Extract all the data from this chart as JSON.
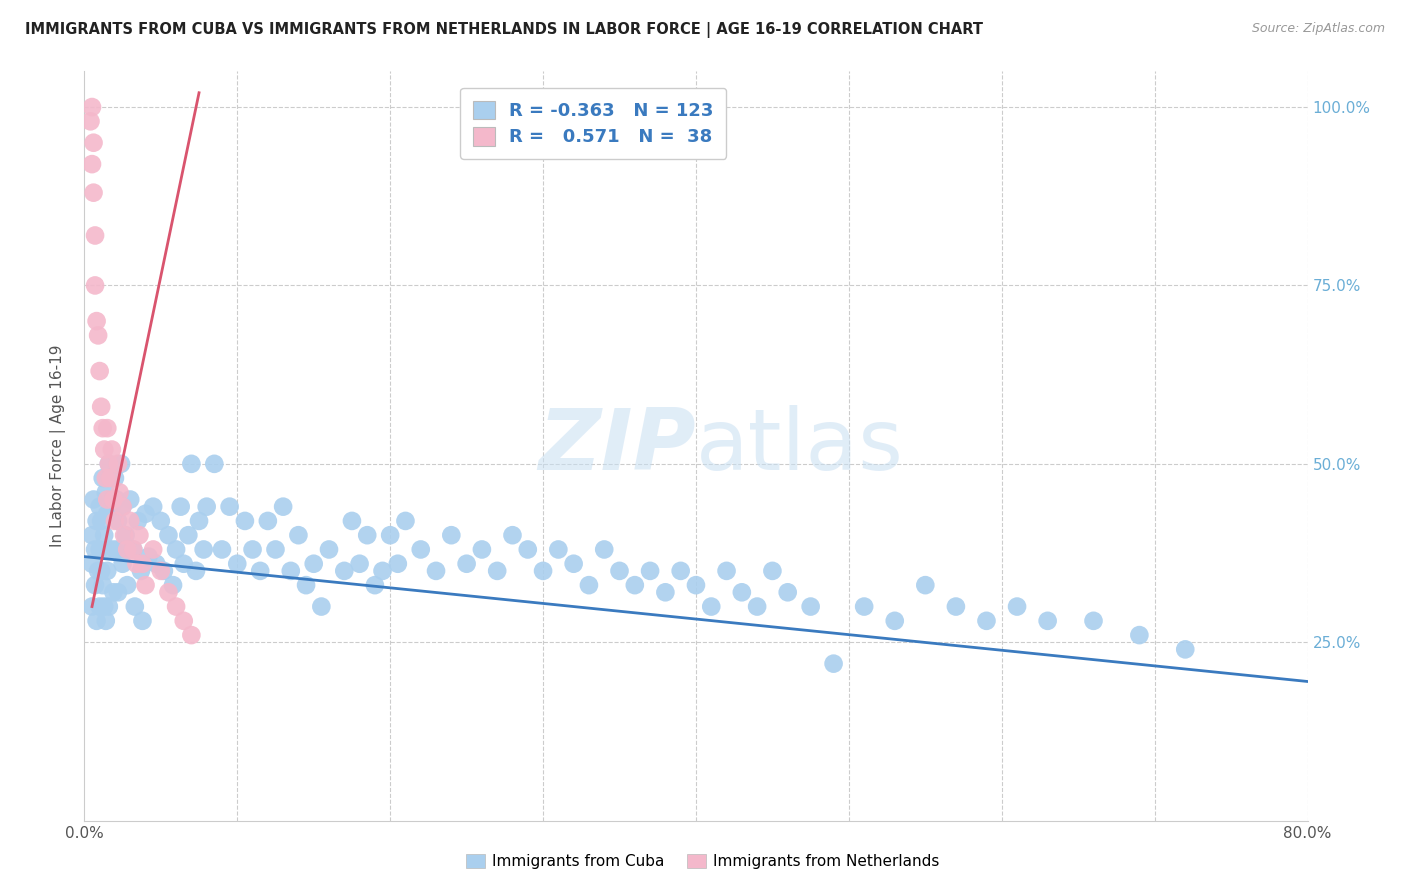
{
  "title": "IMMIGRANTS FROM CUBA VS IMMIGRANTS FROM NETHERLANDS IN LABOR FORCE | AGE 16-19 CORRELATION CHART",
  "source": "Source: ZipAtlas.com",
  "ylabel": "In Labor Force | Age 16-19",
  "legend_r_cuba": "-0.363",
  "legend_n_cuba": "123",
  "legend_r_neth": "0.571",
  "legend_n_neth": "38",
  "cuba_color": "#aacfee",
  "neth_color": "#f4b8cb",
  "cuba_line_color": "#3a7abf",
  "neth_line_color": "#d9546e",
  "legend_text_color": "#3a7abf",
  "watermark_color": "#c8dff2",
  "axis_label_color": "#555555",
  "right_tick_color": "#6baed6",
  "grid_color": "#cccccc",
  "background_color": "#ffffff",
  "xlim": [
    0.0,
    0.8
  ],
  "ylim": [
    0.0,
    1.05
  ],
  "cuba_trend_x": [
    0.0,
    0.8
  ],
  "cuba_trend_y": [
    0.37,
    0.195
  ],
  "neth_trend_x": [
    0.005,
    0.075
  ],
  "neth_trend_y": [
    0.3,
    1.02
  ],
  "cuba_x": [
    0.005,
    0.005,
    0.005,
    0.006,
    0.007,
    0.007,
    0.008,
    0.008,
    0.009,
    0.01,
    0.01,
    0.01,
    0.011,
    0.011,
    0.012,
    0.012,
    0.013,
    0.013,
    0.014,
    0.014,
    0.015,
    0.015,
    0.016,
    0.016,
    0.017,
    0.018,
    0.019,
    0.02,
    0.02,
    0.021,
    0.022,
    0.022,
    0.023,
    0.024,
    0.025,
    0.025,
    0.027,
    0.028,
    0.03,
    0.032,
    0.033,
    0.035,
    0.037,
    0.038,
    0.04,
    0.042,
    0.045,
    0.047,
    0.05,
    0.052,
    0.055,
    0.058,
    0.06,
    0.063,
    0.065,
    0.068,
    0.07,
    0.073,
    0.075,
    0.078,
    0.08,
    0.085,
    0.09,
    0.095,
    0.1,
    0.105,
    0.11,
    0.115,
    0.12,
    0.125,
    0.13,
    0.135,
    0.14,
    0.145,
    0.15,
    0.155,
    0.16,
    0.17,
    0.175,
    0.18,
    0.185,
    0.19,
    0.195,
    0.2,
    0.205,
    0.21,
    0.22,
    0.23,
    0.24,
    0.25,
    0.26,
    0.27,
    0.28,
    0.29,
    0.3,
    0.31,
    0.32,
    0.33,
    0.34,
    0.35,
    0.36,
    0.37,
    0.38,
    0.39,
    0.4,
    0.41,
    0.42,
    0.43,
    0.44,
    0.45,
    0.46,
    0.475,
    0.49,
    0.51,
    0.53,
    0.55,
    0.57,
    0.59,
    0.61,
    0.63,
    0.66,
    0.69,
    0.72
  ],
  "cuba_y": [
    0.4,
    0.36,
    0.3,
    0.45,
    0.38,
    0.33,
    0.42,
    0.28,
    0.35,
    0.44,
    0.38,
    0.3,
    0.42,
    0.35,
    0.48,
    0.33,
    0.4,
    0.3,
    0.46,
    0.28,
    0.43,
    0.35,
    0.5,
    0.3,
    0.38,
    0.44,
    0.32,
    0.48,
    0.38,
    0.45,
    0.42,
    0.32,
    0.38,
    0.5,
    0.44,
    0.36,
    0.4,
    0.33,
    0.45,
    0.38,
    0.3,
    0.42,
    0.35,
    0.28,
    0.43,
    0.37,
    0.44,
    0.36,
    0.42,
    0.35,
    0.4,
    0.33,
    0.38,
    0.44,
    0.36,
    0.4,
    0.5,
    0.35,
    0.42,
    0.38,
    0.44,
    0.5,
    0.38,
    0.44,
    0.36,
    0.42,
    0.38,
    0.35,
    0.42,
    0.38,
    0.44,
    0.35,
    0.4,
    0.33,
    0.36,
    0.3,
    0.38,
    0.35,
    0.42,
    0.36,
    0.4,
    0.33,
    0.35,
    0.4,
    0.36,
    0.42,
    0.38,
    0.35,
    0.4,
    0.36,
    0.38,
    0.35,
    0.4,
    0.38,
    0.35,
    0.38,
    0.36,
    0.33,
    0.38,
    0.35,
    0.33,
    0.35,
    0.32,
    0.35,
    0.33,
    0.3,
    0.35,
    0.32,
    0.3,
    0.35,
    0.32,
    0.3,
    0.22,
    0.3,
    0.28,
    0.33,
    0.3,
    0.28,
    0.3,
    0.28,
    0.28,
    0.26,
    0.24
  ],
  "neth_x": [
    0.004,
    0.005,
    0.005,
    0.006,
    0.006,
    0.007,
    0.007,
    0.008,
    0.009,
    0.01,
    0.011,
    0.012,
    0.013,
    0.014,
    0.015,
    0.015,
    0.016,
    0.017,
    0.018,
    0.019,
    0.02,
    0.022,
    0.023,
    0.025,
    0.026,
    0.028,
    0.03,
    0.032,
    0.034,
    0.036,
    0.038,
    0.04,
    0.045,
    0.05,
    0.055,
    0.06,
    0.065,
    0.07
  ],
  "neth_y": [
    0.98,
    1.0,
    0.92,
    0.88,
    0.95,
    0.82,
    0.75,
    0.7,
    0.68,
    0.63,
    0.58,
    0.55,
    0.52,
    0.48,
    0.45,
    0.55,
    0.5,
    0.48,
    0.52,
    0.45,
    0.42,
    0.5,
    0.46,
    0.44,
    0.4,
    0.38,
    0.42,
    0.38,
    0.36,
    0.4,
    0.36,
    0.33,
    0.38,
    0.35,
    0.32,
    0.3,
    0.28,
    0.26
  ]
}
